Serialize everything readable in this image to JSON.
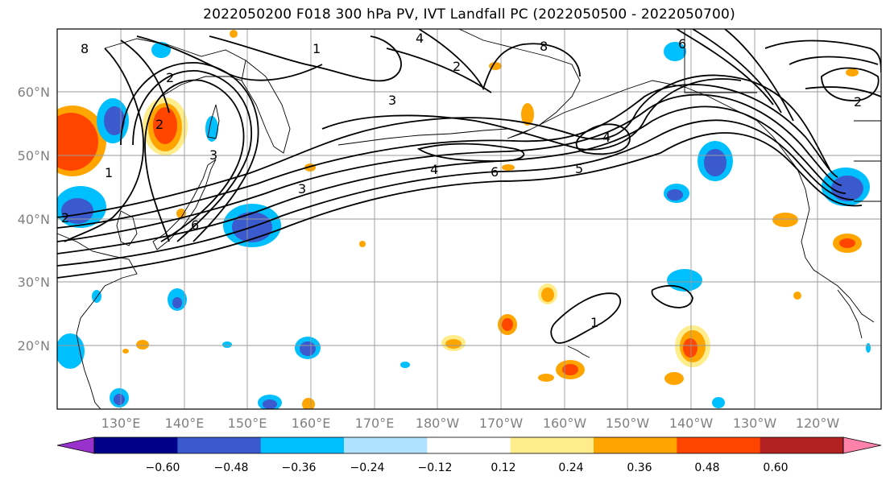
{
  "title": "2022050200 F018 300 hPa PV, IVT Landfall PC (2022050500 - 2022050700)",
  "map": {
    "lat_labels": [
      "60°N",
      "50°N",
      "40°N",
      "30°N",
      "20°N"
    ],
    "lat_values": [
      60,
      50,
      40,
      30,
      20
    ],
    "lon_labels": [
      "130°E",
      "140°E",
      "150°E",
      "160°E",
      "170°E",
      "180°W",
      "170°W",
      "160°W",
      "150°W",
      "140°W",
      "130°W",
      "120°W"
    ],
    "lon_values": [
      130,
      140,
      150,
      160,
      170,
      180,
      190,
      200,
      210,
      220,
      230,
      240
    ],
    "lat_range": [
      10,
      70
    ],
    "lon_range": [
      120,
      250
    ],
    "contour_labels": [
      "2",
      "3",
      "4",
      "5",
      "6",
      "8",
      "1",
      "2",
      "3",
      "4",
      "6",
      "4",
      "1",
      "6",
      "2",
      "2",
      "8",
      "2",
      "3",
      "1"
    ],
    "land_color": "#000000",
    "grid": true
  },
  "colorbar": {
    "ticks": [
      "−0.60",
      "−0.48",
      "−0.36",
      "−0.24",
      "−0.12",
      "0.12",
      "0.24",
      "0.36",
      "0.48",
      "0.60"
    ],
    "colors": [
      "#9932cc",
      "#00008b",
      "#3a5acd",
      "#00bfff",
      "#b0e2ff",
      "#ffffff",
      "#ffec8b",
      "#ffa500",
      "#ff4500",
      "#b22222",
      "#ff82ab"
    ]
  }
}
